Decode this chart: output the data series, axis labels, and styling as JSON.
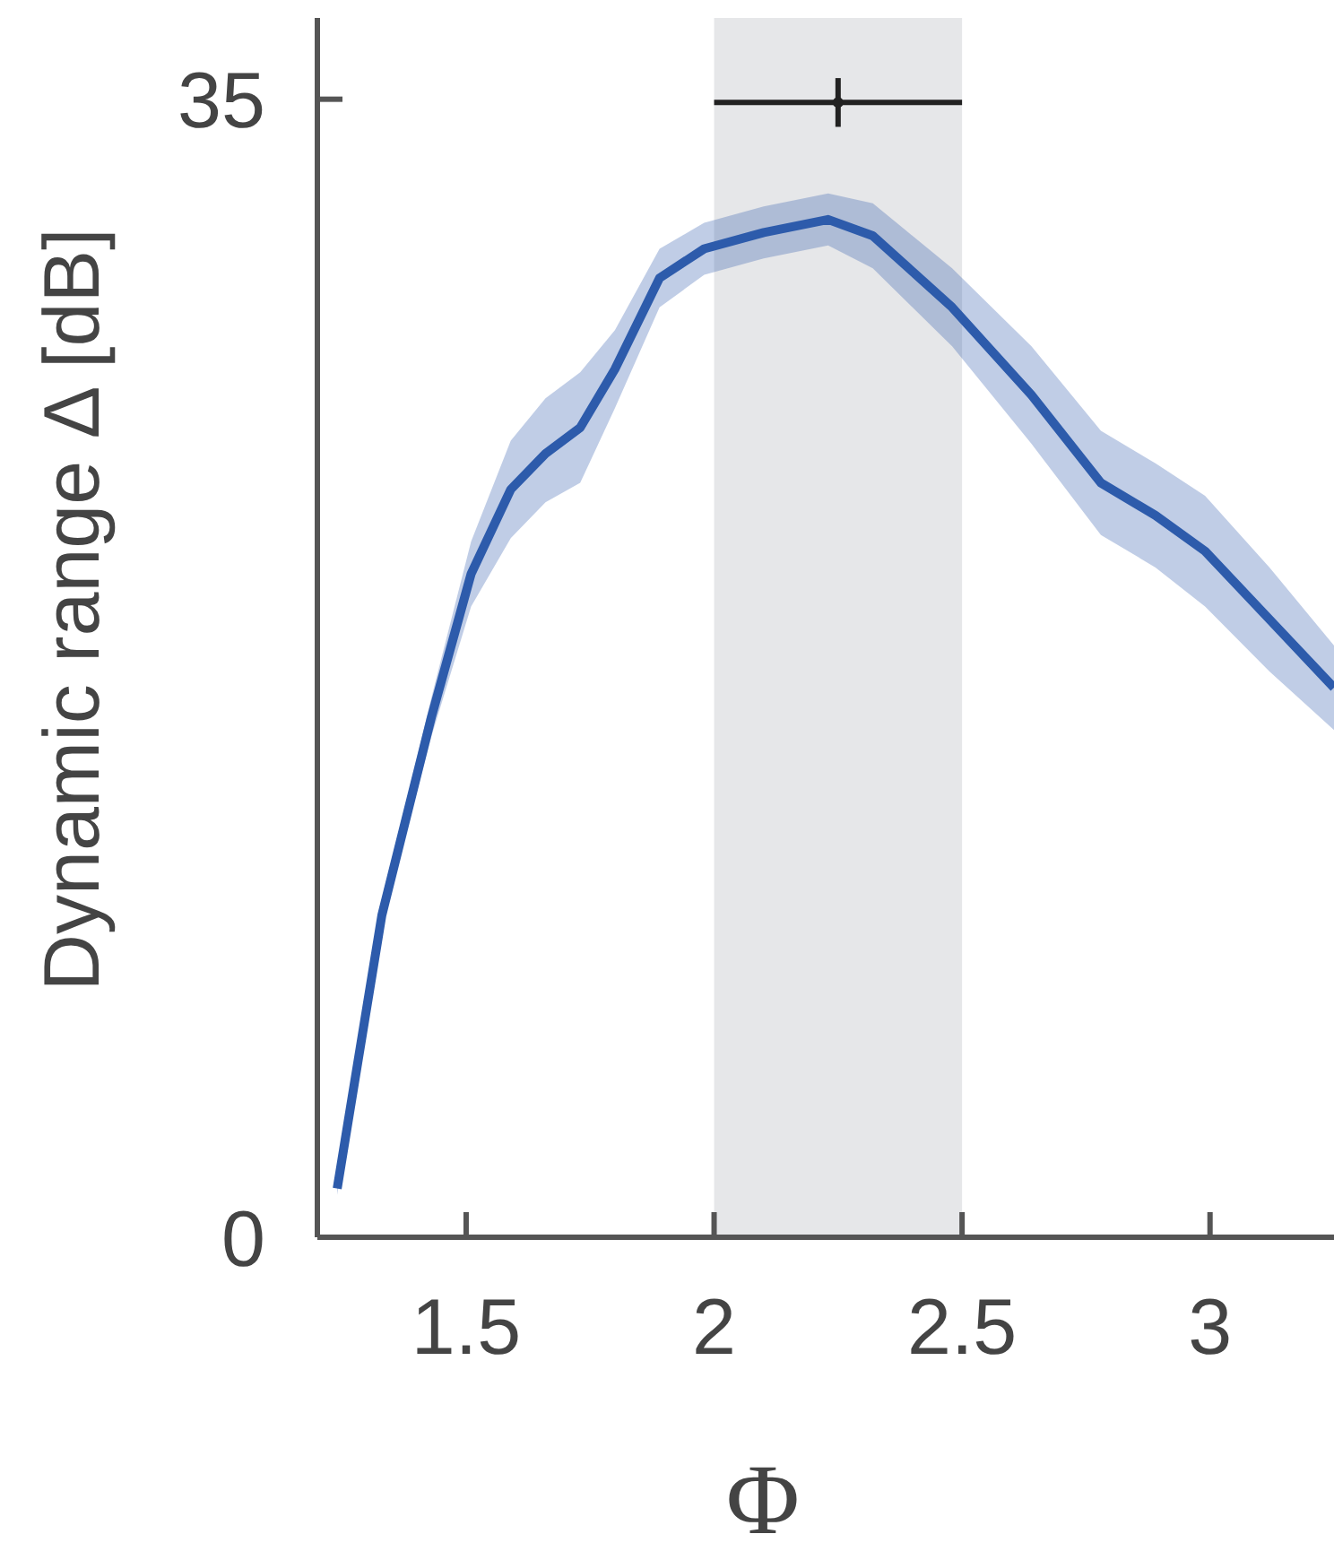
{
  "chart_data": {
    "type": "line",
    "xlabel": "Φ",
    "ylabel": "Dynamic range Δ [dB]",
    "xlim": [
      1.2,
      3.25
    ],
    "ylim": [
      0,
      37.5
    ],
    "xticks": [
      1.5,
      2,
      2.5,
      3
    ],
    "yticks": [
      0,
      35
    ],
    "grid": false,
    "bands": [
      {
        "axis": "x",
        "from": 2,
        "to": 2.5,
        "color": "#e6e7e9"
      }
    ],
    "series": [
      {
        "color": "#2d5bab",
        "x": [
          1.24,
          1.33,
          1.43,
          1.51,
          1.59,
          1.66,
          1.73,
          1.8,
          1.89,
          1.98,
          2.1,
          2.23,
          2.32,
          2.48,
          2.64,
          2.78,
          2.89,
          2.99,
          3.12,
          3.25
        ],
        "values": [
          1.5,
          9.9,
          16,
          20.4,
          23,
          24.1,
          24.9,
          26.7,
          29.5,
          30.4,
          30.9,
          31.3,
          30.8,
          28.6,
          25.9,
          23.2,
          22.2,
          21.1,
          19,
          16.9
        ],
        "lower": [
          1.3,
          9.6,
          15.4,
          19.4,
          21.5,
          22.6,
          23.2,
          25.5,
          28.6,
          29.6,
          30.1,
          30.5,
          29.8,
          27.4,
          24.4,
          21.6,
          20.6,
          19.4,
          17.4,
          15.6
        ],
        "upper": [
          1.7,
          10.2,
          16.6,
          21.4,
          24.5,
          25.8,
          26.6,
          27.9,
          30.4,
          31.2,
          31.7,
          32.1,
          31.8,
          29.8,
          27.4,
          24.8,
          23.8,
          22.8,
          20.6,
          18.2
        ]
      },
      {
        "type": "scatter",
        "color": "#222222",
        "x": [
          2.25
        ],
        "values": [
          34.9
        ],
        "xerrors": [
          0.25
        ],
        "errors": [
          0.75
        ]
      }
    ]
  }
}
